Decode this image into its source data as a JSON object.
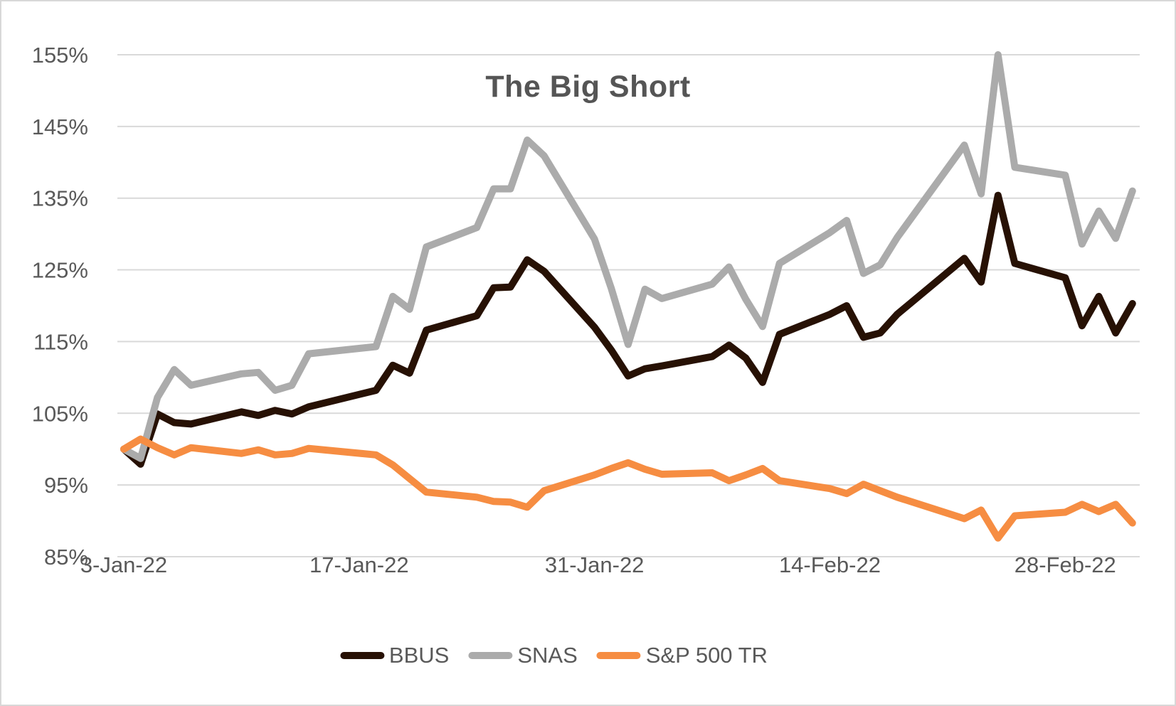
{
  "title": "The Big Short",
  "chart_data": {
    "type": "line",
    "title": "The Big Short",
    "xlabel": "",
    "ylabel": "",
    "grid": true,
    "legend_position": "bottom",
    "ylim": [
      85,
      155
    ],
    "y_tick_labels": [
      "85%",
      "95%",
      "105%",
      "115%",
      "125%",
      "135%",
      "145%",
      "155%"
    ],
    "x_ticks": [
      {
        "label": "3-Jan-22",
        "date": "2022-01-03"
      },
      {
        "label": "17-Jan-22",
        "date": "2022-01-17"
      },
      {
        "label": "31-Jan-22",
        "date": "2022-01-31"
      },
      {
        "label": "14-Feb-22",
        "date": "2022-02-14"
      },
      {
        "label": "28-Feb-22",
        "date": "2022-02-28"
      }
    ],
    "dates": [
      "2022-01-03",
      "2022-01-04",
      "2022-01-05",
      "2022-01-06",
      "2022-01-07",
      "2022-01-10",
      "2022-01-11",
      "2022-01-12",
      "2022-01-13",
      "2022-01-14",
      "2022-01-18",
      "2022-01-19",
      "2022-01-20",
      "2022-01-21",
      "2022-01-24",
      "2022-01-25",
      "2022-01-26",
      "2022-01-27",
      "2022-01-28",
      "2022-01-31",
      "2022-02-01",
      "2022-02-02",
      "2022-02-03",
      "2022-02-04",
      "2022-02-07",
      "2022-02-08",
      "2022-02-09",
      "2022-02-10",
      "2022-02-11",
      "2022-02-14",
      "2022-02-15",
      "2022-02-16",
      "2022-02-17",
      "2022-02-18",
      "2022-02-22",
      "2022-02-23",
      "2022-02-24",
      "2022-02-25",
      "2022-02-28",
      "2022-03-01",
      "2022-03-02",
      "2022-03-03",
      "2022-03-04"
    ],
    "series": [
      {
        "name": "BBUS",
        "color": "#271104",
        "values": [
          100.0,
          97.9,
          104.9,
          103.7,
          103.5,
          105.2,
          104.7,
          105.4,
          104.9,
          105.9,
          108.2,
          111.7,
          110.6,
          116.6,
          118.6,
          122.5,
          122.6,
          126.4,
          124.8,
          117.0,
          113.8,
          110.2,
          111.2,
          111.6,
          112.9,
          114.5,
          112.7,
          109.3,
          116.0,
          118.8,
          120.0,
          115.6,
          116.2,
          118.8,
          126.6,
          123.3,
          135.4,
          125.9,
          123.9,
          117.2,
          121.3,
          116.2,
          120.3
        ]
      },
      {
        "name": "SNAS",
        "color": "#ababab",
        "values": [
          100.0,
          98.7,
          107.2,
          111.1,
          108.9,
          110.5,
          110.7,
          108.2,
          108.9,
          113.3,
          114.3,
          121.3,
          119.5,
          128.2,
          130.9,
          136.3,
          136.3,
          143.1,
          140.9,
          129.3,
          122.4,
          114.6,
          122.3,
          121.0,
          123.0,
          125.4,
          120.9,
          117.1,
          125.9,
          130.2,
          131.9,
          124.5,
          125.7,
          129.5,
          142.4,
          135.6,
          155.0,
          139.3,
          138.2,
          128.6,
          133.2,
          129.4,
          136.0
        ]
      },
      {
        "name": "S&P 500 TR",
        "color": "#f68d42",
        "values": [
          100.0,
          101.4,
          100.2,
          99.2,
          100.2,
          99.4,
          99.9,
          99.2,
          99.4,
          100.1,
          99.2,
          97.8,
          95.9,
          94.0,
          93.3,
          92.7,
          92.6,
          91.9,
          94.2,
          96.4,
          97.3,
          98.1,
          97.2,
          96.5,
          96.7,
          95.6,
          96.4,
          97.3,
          95.6,
          94.5,
          93.8,
          95.1,
          94.2,
          93.3,
          90.3,
          91.5,
          87.6,
          90.7,
          91.2,
          92.3,
          91.3,
          92.3,
          89.7
        ]
      }
    ]
  }
}
